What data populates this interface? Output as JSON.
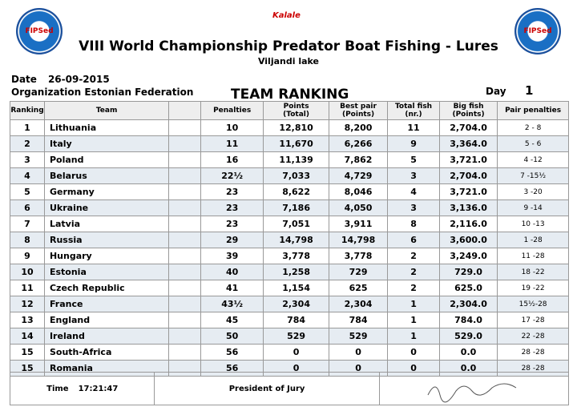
{
  "header": {
    "logo_left": "FIPSed",
    "logo_right": "FIPSed",
    "sponsor": "Kalale",
    "title": "VIII World Championship Predator Boat Fishing - Lures",
    "subtitle": "Viljandi lake",
    "date_label": "Date",
    "date": "26-09-2015",
    "organization_label": "Organization",
    "organization": "Estonian Federation",
    "ranking_title": "TEAM RANKING",
    "day_label": "Day",
    "day": "1"
  },
  "table": {
    "columns": [
      [
        "Ranking"
      ],
      [
        "Team"
      ],
      [],
      [
        "Penalties"
      ],
      [
        "Points",
        "(Total)"
      ],
      [
        "Best pair",
        "(Points)"
      ],
      [
        "Total fish",
        "(nr.)"
      ],
      [
        "Big fish",
        "(Points)"
      ],
      [
        "Pair penalties"
      ]
    ],
    "rows": [
      [
        "1",
        "Lithuania",
        "10",
        "12,810",
        "8,200",
        "11",
        "2,704.0",
        "2 - 8"
      ],
      [
        "2",
        "Italy",
        "11",
        "11,670",
        "6,266",
        "9",
        "3,364.0",
        "5 - 6"
      ],
      [
        "3",
        "Poland",
        "16",
        "11,139",
        "7,862",
        "5",
        "3,721.0",
        "4 -12"
      ],
      [
        "4",
        "Belarus",
        "22½",
        "7,033",
        "4,729",
        "3",
        "2,704.0",
        "7 -15½"
      ],
      [
        "5",
        "Germany",
        "23",
        "8,622",
        "8,046",
        "4",
        "3,721.0",
        "3 -20"
      ],
      [
        "6",
        "Ukraine",
        "23",
        "7,186",
        "4,050",
        "3",
        "3,136.0",
        "9 -14"
      ],
      [
        "7",
        "Latvia",
        "23",
        "7,051",
        "3,911",
        "8",
        "2,116.0",
        "10 -13"
      ],
      [
        "8",
        "Russia",
        "29",
        "14,798",
        "14,798",
        "6",
        "3,600.0",
        "1 -28"
      ],
      [
        "9",
        "Hungary",
        "39",
        "3,778",
        "3,778",
        "2",
        "3,249.0",
        "11 -28"
      ],
      [
        "10",
        "Estonia",
        "40",
        "1,258",
        "729",
        "2",
        "729.0",
        "18 -22"
      ],
      [
        "11",
        "Czech Republic",
        "41",
        "1,154",
        "625",
        "2",
        "625.0",
        "19 -22"
      ],
      [
        "12",
        "France",
        "43½",
        "2,304",
        "2,304",
        "1",
        "2,304.0",
        "15½-28"
      ],
      [
        "13",
        "England",
        "45",
        "784",
        "784",
        "1",
        "784.0",
        "17 -28"
      ],
      [
        "14",
        "Ireland",
        "50",
        "529",
        "529",
        "1",
        "529.0",
        "22 -28"
      ],
      [
        "15",
        "South-Africa",
        "56",
        "0",
        "0",
        "0",
        "0.0",
        "28 -28"
      ],
      [
        "15",
        "Romania",
        "56",
        "0",
        "0",
        "0",
        "0.0",
        "28 -28"
      ]
    ]
  },
  "footer": {
    "time_label": "Time",
    "time": "17:21:47",
    "jury": "President of Jury"
  }
}
